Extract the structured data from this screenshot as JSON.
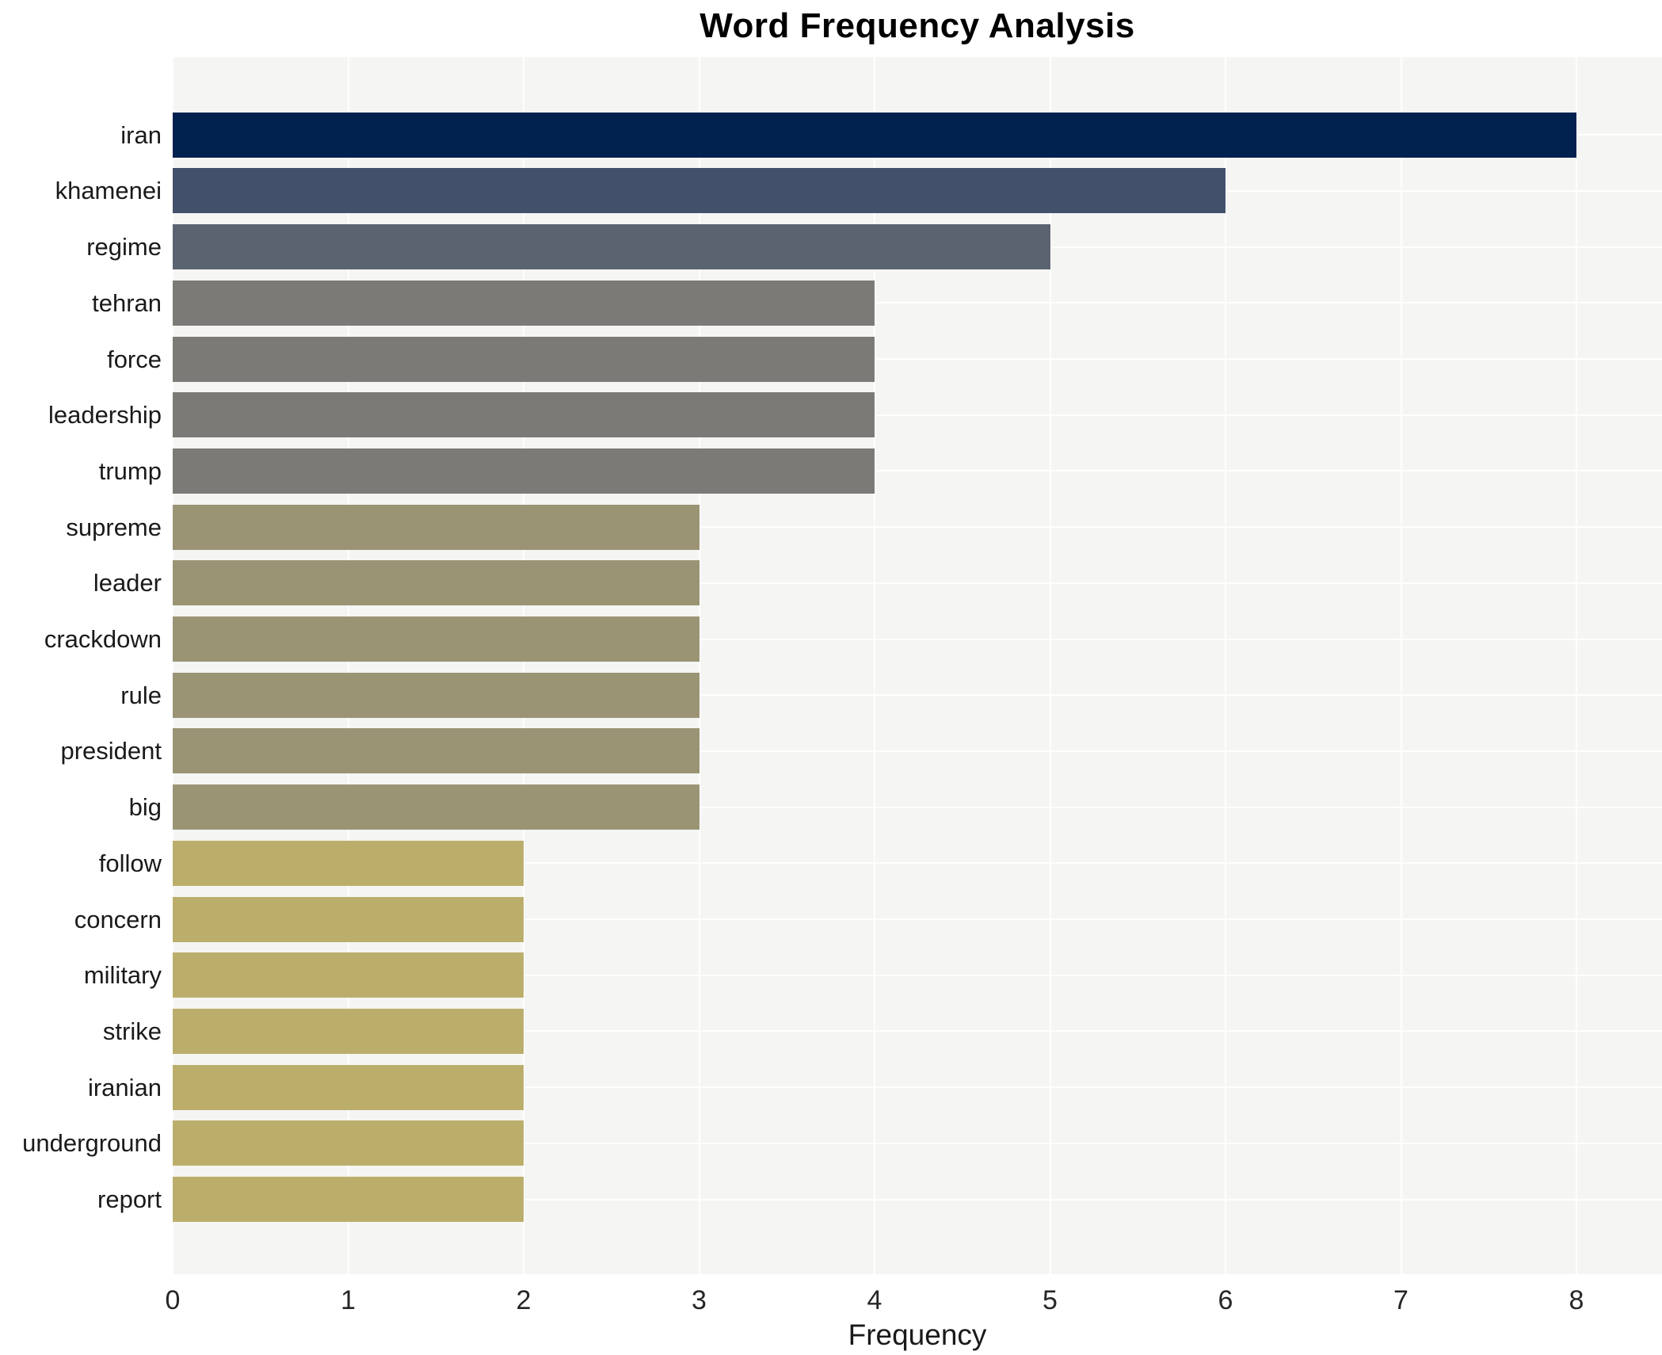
{
  "title": "Word Frequency Analysis",
  "chart_data": {
    "type": "bar",
    "orientation": "horizontal",
    "title": "Word Frequency Analysis",
    "xlabel": "Frequency",
    "ylabel": "",
    "xlim": [
      0,
      8.5
    ],
    "xticks": [
      0,
      1,
      2,
      3,
      4,
      5,
      6,
      7,
      8
    ],
    "xtick_labels": [
      "0",
      "1",
      "2",
      "3",
      "4",
      "5",
      "6",
      "7",
      "8"
    ],
    "grid": true,
    "legend": false,
    "plot_background": "#f5f5f3",
    "grid_color": "#ffffff",
    "categories": [
      "iran",
      "khamenei",
      "regime",
      "tehran",
      "force",
      "leadership",
      "trump",
      "supreme",
      "leader",
      "crackdown",
      "rule",
      "president",
      "big",
      "follow",
      "concern",
      "military",
      "strike",
      "iranian",
      "underground",
      "report"
    ],
    "values": [
      8,
      6,
      5,
      4,
      4,
      4,
      4,
      3,
      3,
      3,
      3,
      3,
      3,
      2,
      2,
      2,
      2,
      2,
      2,
      2
    ],
    "bar_colors": [
      "#01214e",
      "#43506c",
      "#5c6370",
      "#7b7a76",
      "#7b7a76",
      "#7b7a76",
      "#7b7a76",
      "#9a9474",
      "#9a9474",
      "#9a9474",
      "#9a9474",
      "#9a9474",
      "#9a9474",
      "#bbae6b",
      "#bbae6b",
      "#bbae6b",
      "#bbae6b",
      "#bbae6b",
      "#bbae6b",
      "#bbae6b"
    ]
  }
}
